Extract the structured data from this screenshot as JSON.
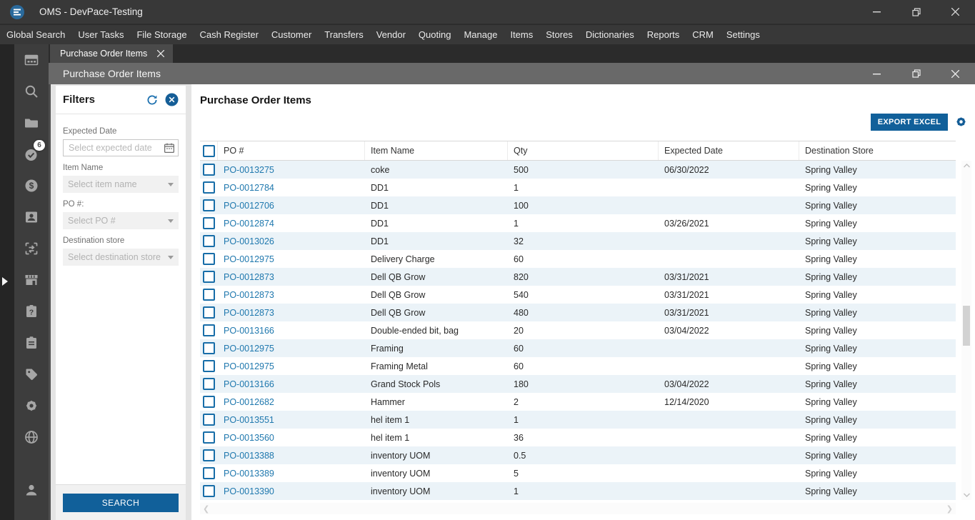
{
  "window": {
    "title": "OMS - DevPace-Testing"
  },
  "menu": {
    "items": [
      "Global Search",
      "User Tasks",
      "File Storage",
      "Cash Register",
      "Customer",
      "Transfers",
      "Vendor",
      "Quoting",
      "Manage",
      "Items",
      "Stores",
      "Dictionaries",
      "Reports",
      "CRM",
      "Settings"
    ]
  },
  "tabs": {
    "active_label": "Purchase Order Items"
  },
  "inner_window": {
    "title": "Purchase Order Items"
  },
  "sidebar": {
    "badge_count": "6",
    "icons": [
      "dashboard-icon",
      "search-icon",
      "folder-icon",
      "tasks-check-icon",
      "dollar-icon",
      "contact-card-icon",
      "transfer-box-icon",
      "store-icon",
      "clipboard-question-icon",
      "clipboard-list-icon",
      "tag-icon",
      "gear-icon",
      "globe-icon",
      "user-icon"
    ]
  },
  "filters": {
    "title": "Filters",
    "expected_date": {
      "label": "Expected Date",
      "placeholder": "Select expected date"
    },
    "item_name": {
      "label": "Item Name",
      "placeholder": "Select item name"
    },
    "po_number": {
      "label": "PO #:",
      "placeholder": "Select PO #"
    },
    "destination_store": {
      "label": "Destination store",
      "placeholder": "Select destination store"
    },
    "search_label": "SEARCH"
  },
  "main": {
    "title": "Purchase Order Items",
    "export_label": "EXPORT EXCEL",
    "table": {
      "columns": [
        "PO #",
        "Item Name",
        "Qty",
        "Expected Date",
        "Destination Store"
      ],
      "rows": [
        [
          "PO-0013275",
          "coke",
          "500",
          "06/30/2022",
          "Spring Valley"
        ],
        [
          "PO-0012784",
          "DD1",
          "1",
          "",
          "Spring Valley"
        ],
        [
          "PO-0012706",
          "DD1",
          "100",
          "",
          "Spring Valley"
        ],
        [
          "PO-0012874",
          "DD1",
          "1",
          "03/26/2021",
          "Spring Valley"
        ],
        [
          "PO-0013026",
          "DD1",
          "32",
          "",
          "Spring Valley"
        ],
        [
          "PO-0012975",
          "Delivery Charge",
          "60",
          "",
          "Spring Valley"
        ],
        [
          "PO-0012873",
          "Dell QB Grow",
          "820",
          "03/31/2021",
          "Spring Valley"
        ],
        [
          "PO-0012873",
          "Dell QB Grow",
          "540",
          "03/31/2021",
          "Spring Valley"
        ],
        [
          "PO-0012873",
          "Dell QB Grow",
          "480",
          "03/31/2021",
          "Spring Valley"
        ],
        [
          "PO-0013166",
          "Double-ended bit, bag",
          "20",
          "03/04/2022",
          "Spring Valley"
        ],
        [
          "PO-0012975",
          "Framing",
          "60",
          "",
          "Spring Valley"
        ],
        [
          "PO-0012975",
          "Framing Metal",
          "60",
          "",
          "Spring Valley"
        ],
        [
          "PO-0013166",
          "Grand Stock Pols",
          "180",
          "03/04/2022",
          "Spring Valley"
        ],
        [
          "PO-0012682",
          "Hammer",
          "2",
          "12/14/2020",
          "Spring Valley"
        ],
        [
          "PO-0013551",
          "hel item 1",
          "1",
          "",
          "Spring Valley"
        ],
        [
          "PO-0013560",
          "hel item 1",
          "36",
          "",
          "Spring Valley"
        ],
        [
          "PO-0013388",
          "inventory UOM",
          "0.5",
          "",
          "Spring Valley"
        ],
        [
          "PO-0013389",
          "inventory UOM",
          "5",
          "",
          "Spring Valley"
        ],
        [
          "PO-0013390",
          "inventory UOM",
          "1",
          "",
          "Spring Valley"
        ]
      ]
    }
  },
  "colors": {
    "accent_blue": "#11609a",
    "link_blue": "#1f78ae",
    "row_alt": "#ebf3f8",
    "titlebar_bg": "#383838",
    "sidebar_bg": "#3d3d3d"
  }
}
